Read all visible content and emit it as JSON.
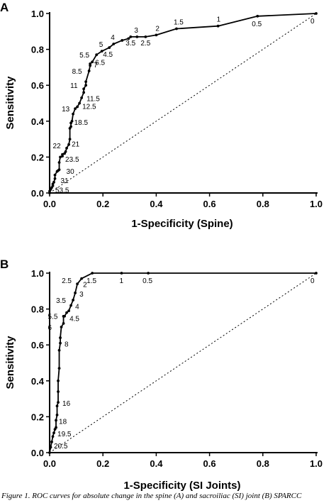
{
  "caption": "Figure 1. ROC curves for absolute change in the spine (A) and sacroiliac (SI) joint (B) SPARCC",
  "chart_data": [
    {
      "type": "line",
      "panel_label": "A",
      "xlabel": "1-Specificity (Spine)",
      "ylabel": "Sensitivity",
      "xlim": [
        0,
        1
      ],
      "ylim": [
        0,
        1
      ],
      "xticks": [
        "0.0",
        "0.2",
        "0.4",
        "0.6",
        "0.8",
        "1.0"
      ],
      "yticks": [
        "0.0",
        "0.2",
        "0.4",
        "0.6",
        "0.8",
        "1.0"
      ],
      "grid": false,
      "diagonal_reference": true,
      "series": [
        {
          "x": [
            0.0,
            0.0,
            0.004,
            0.008,
            0.012,
            0.012,
            0.016,
            0.02,
            0.02,
            0.028,
            0.032,
            0.036,
            0.036,
            0.04,
            0.048,
            0.048,
            0.056,
            0.06,
            0.064,
            0.072,
            0.076,
            0.076,
            0.08,
            0.08,
            0.084,
            0.088,
            0.096,
            0.104,
            0.112,
            0.12,
            0.128,
            0.128,
            0.136,
            0.136,
            0.148,
            0.152,
            0.152,
            0.16,
            0.176,
            0.196,
            0.224,
            0.24,
            0.272,
            0.296,
            0.304,
            0.328,
            0.36,
            0.4,
            0.476,
            0.632,
            0.78,
            1.0
          ],
          "y": [
            0.0,
            0.01,
            0.02,
            0.03,
            0.04,
            0.05,
            0.06,
            0.08,
            0.1,
            0.12,
            0.125,
            0.13,
            0.17,
            0.2,
            0.205,
            0.215,
            0.22,
            0.23,
            0.25,
            0.27,
            0.3,
            0.36,
            0.37,
            0.39,
            0.4,
            0.44,
            0.47,
            0.48,
            0.5,
            0.53,
            0.56,
            0.58,
            0.6,
            0.62,
            0.68,
            0.71,
            0.72,
            0.73,
            0.77,
            0.79,
            0.81,
            0.83,
            0.85,
            0.86,
            0.87,
            0.87,
            0.87,
            0.88,
            0.915,
            0.93,
            0.985,
            1.0
          ]
        }
      ],
      "point_labels": [
        {
          "text": "0",
          "x": 1.0,
          "y": 1.0
        },
        {
          "text": "0.5",
          "x": 0.78,
          "y": 0.985
        },
        {
          "text": "1",
          "x": 0.632,
          "y": 0.93
        },
        {
          "text": "1.5",
          "x": 0.476,
          "y": 0.915
        },
        {
          "text": "2",
          "x": 0.4,
          "y": 0.88
        },
        {
          "text": "2.5",
          "x": 0.36,
          "y": 0.87
        },
        {
          "text": "3",
          "x": 0.328,
          "y": 0.87
        },
        {
          "text": "3.5",
          "x": 0.304,
          "y": 0.87
        },
        {
          "text": "4",
          "x": 0.24,
          "y": 0.83
        },
        {
          "text": "4.5",
          "x": 0.224,
          "y": 0.81
        },
        {
          "text": "5",
          "x": 0.196,
          "y": 0.79
        },
        {
          "text": "5.5",
          "x": 0.176,
          "y": 0.77
        },
        {
          "text": "6.5",
          "x": 0.16,
          "y": 0.73
        },
        {
          "text": "7",
          "x": 0.152,
          "y": 0.72
        },
        {
          "text": "8.5",
          "x": 0.148,
          "y": 0.68
        },
        {
          "text": "11",
          "x": 0.136,
          "y": 0.6
        },
        {
          "text": "11.5",
          "x": 0.128,
          "y": 0.56
        },
        {
          "text": "12.5",
          "x": 0.112,
          "y": 0.5
        },
        {
          "text": "13",
          "x": 0.096,
          "y": 0.47
        },
        {
          "text": "18.5",
          "x": 0.084,
          "y": 0.4
        },
        {
          "text": "21",
          "x": 0.072,
          "y": 0.27
        },
        {
          "text": "22",
          "x": 0.06,
          "y": 0.23
        },
        {
          "text": "23.5",
          "x": 0.048,
          "y": 0.205
        },
        {
          "text": "30",
          "x": 0.036,
          "y": 0.13
        },
        {
          "text": "31",
          "x": 0.02,
          "y": 0.08
        },
        {
          "text": "53.5",
          "x": 0.008,
          "y": 0.03
        }
      ]
    },
    {
      "type": "line",
      "panel_label": "B",
      "xlabel": "1-Specificity (SI Joints)",
      "ylabel": "Sensitivity",
      "xlim": [
        0,
        1
      ],
      "ylim": [
        0,
        1
      ],
      "xticks": [
        "0.0",
        "0.2",
        "0.4",
        "0.6",
        "0.8",
        "1.0"
      ],
      "yticks": [
        "0.0",
        "0.2",
        "0.4",
        "0.6",
        "0.8",
        "1.0"
      ],
      "grid": false,
      "diagonal_reference": true,
      "series": [
        {
          "x": [
            0.0,
            0.004,
            0.008,
            0.012,
            0.016,
            0.02,
            0.024,
            0.024,
            0.028,
            0.028,
            0.032,
            0.032,
            0.032,
            0.036,
            0.036,
            0.04,
            0.04,
            0.044,
            0.052,
            0.052,
            0.056,
            0.064,
            0.072,
            0.08,
            0.088,
            0.096,
            0.104,
            0.12,
            0.16,
            0.27,
            0.37,
            1.0
          ],
          "y": [
            0.0,
            0.03,
            0.06,
            0.09,
            0.11,
            0.13,
            0.14,
            0.18,
            0.21,
            0.26,
            0.28,
            0.34,
            0.4,
            0.47,
            0.57,
            0.61,
            0.64,
            0.7,
            0.72,
            0.76,
            0.76,
            0.78,
            0.79,
            0.82,
            0.85,
            0.89,
            0.94,
            0.97,
            1.0,
            1.0,
            1.0,
            1.0
          ]
        }
      ],
      "point_labels": [
        {
          "text": "0",
          "x": 1.0,
          "y": 1.0
        },
        {
          "text": "0.5",
          "x": 0.37,
          "y": 1.0
        },
        {
          "text": "1",
          "x": 0.27,
          "y": 1.0
        },
        {
          "text": "1.5",
          "x": 0.16,
          "y": 1.0
        },
        {
          "text": "2",
          "x": 0.12,
          "y": 0.97
        },
        {
          "text": "2.5",
          "x": 0.104,
          "y": 0.94
        },
        {
          "text": "3",
          "x": 0.096,
          "y": 0.89
        },
        {
          "text": "3.5",
          "x": 0.088,
          "y": 0.85
        },
        {
          "text": "4",
          "x": 0.08,
          "y": 0.82
        },
        {
          "text": "4.5",
          "x": 0.064,
          "y": 0.78
        },
        {
          "text": "5.5",
          "x": 0.052,
          "y": 0.76
        },
        {
          "text": "6",
          "x": 0.044,
          "y": 0.7
        },
        {
          "text": "8",
          "x": 0.04,
          "y": 0.61
        },
        {
          "text": "16",
          "x": 0.032,
          "y": 0.28
        },
        {
          "text": "18",
          "x": 0.024,
          "y": 0.18
        },
        {
          "text": "19.5",
          "x": 0.016,
          "y": 0.11
        },
        {
          "text": "20.5",
          "x": 0.008,
          "y": 0.06
        }
      ]
    }
  ]
}
